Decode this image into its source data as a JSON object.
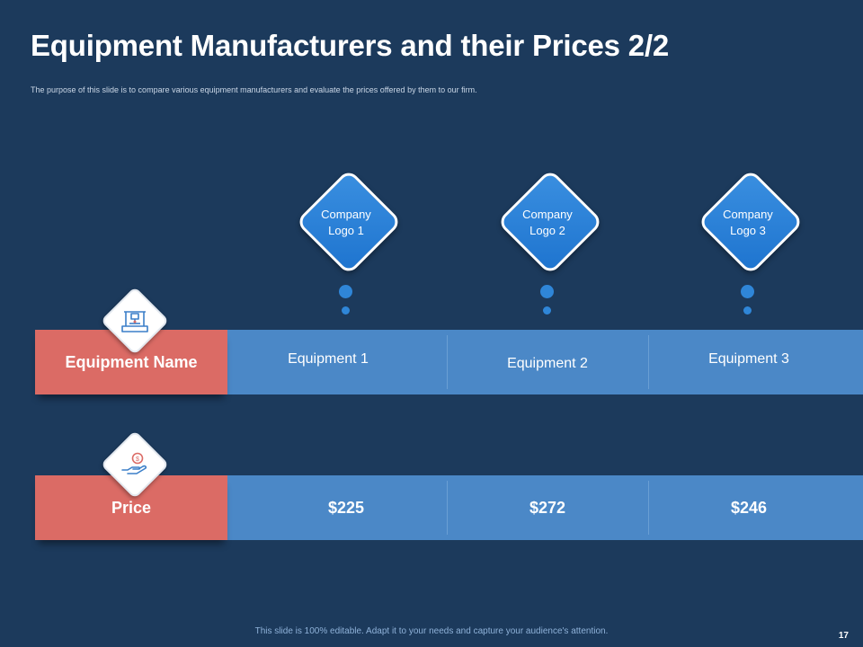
{
  "slide": {
    "title": "Equipment Manufacturers and their Prices 2/2",
    "subtitle": "The purpose of this slide is to compare various equipment manufacturers and evaluate the prices offered by them to our firm."
  },
  "logos": [
    {
      "line1": "Company",
      "line2": "Logo 1"
    },
    {
      "line1": "Company",
      "line2": "Logo 2"
    },
    {
      "line1": "Company",
      "line2": "Logo 3"
    }
  ],
  "rows": {
    "equipment": {
      "label": "Equipment Name",
      "icon": "equipment-machine-icon",
      "values": [
        "Equipment 1",
        "Equipment 2",
        "Equipment 3"
      ]
    },
    "price": {
      "label": "Price",
      "icon": "hand-coin-icon",
      "values": [
        "$225",
        "$272",
        "$246"
      ]
    }
  },
  "footer": {
    "note": "This slide is 100% editable. Adapt it to your needs and capture your audience's attention.",
    "page_number": "17"
  },
  "colors": {
    "background": "#1c3a5c",
    "label_fill": "#db6b65",
    "band_fill": "#4b88c7",
    "diamond_fill": "#2a83d9"
  }
}
